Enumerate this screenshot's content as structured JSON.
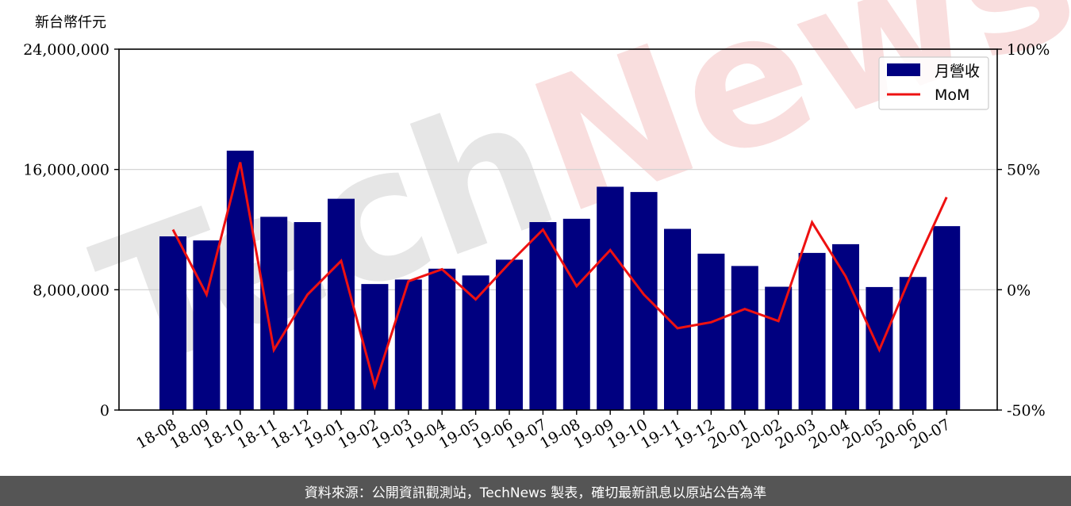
{
  "chart_data": {
    "type": "bar",
    "y_unit_label": "新台幣仟元",
    "watermark": "TechNews",
    "categories": [
      "18-08",
      "18-09",
      "18-10",
      "18-11",
      "18-12",
      "19-01",
      "19-02",
      "19-03",
      "19-04",
      "19-05",
      "19-06",
      "19-07",
      "19-08",
      "19-09",
      "19-10",
      "19-11",
      "19-12",
      "20-01",
      "20-02",
      "20-03",
      "20-04",
      "20-05",
      "20-06",
      "20-07"
    ],
    "series": [
      {
        "name": "月營收",
        "type": "bar",
        "axis": "left",
        "color": "#000080",
        "values": [
          11550000,
          11280000,
          17250000,
          12850000,
          12500000,
          14050000,
          8380000,
          8680000,
          9400000,
          8950000,
          10000000,
          12500000,
          12720000,
          14850000,
          14500000,
          12050000,
          10400000,
          9580000,
          8200000,
          10450000,
          11030000,
          8180000,
          8850000,
          12230000
        ]
      },
      {
        "name": "MoM",
        "type": "line",
        "axis": "right",
        "color": "#ee1111",
        "values": [
          25,
          -2,
          53,
          -25,
          -2,
          12,
          -40,
          3.5,
          8.5,
          -4,
          11,
          25,
          1.5,
          16.5,
          -2,
          -16,
          -13.5,
          -8,
          -13,
          28,
          5.5,
          -25,
          8,
          38.5
        ]
      }
    ],
    "y_left": {
      "min": 0,
      "max": 24000000,
      "ticks": [
        0,
        8000000,
        16000000,
        24000000
      ],
      "tick_labels": [
        "0",
        "8,000,000",
        "16,000,000",
        "24,000,000"
      ]
    },
    "y_right": {
      "min": -50,
      "max": 100,
      "ticks": [
        -50,
        0,
        50,
        100
      ],
      "tick_labels": [
        "-50%",
        "0%",
        "50%",
        "100%"
      ]
    },
    "grid": "horizontal",
    "legend": "top-right"
  },
  "footer": {
    "text": "資料來源：公開資訊觀測站，TechNews 製表，確切最新訊息以原站公告為準"
  }
}
